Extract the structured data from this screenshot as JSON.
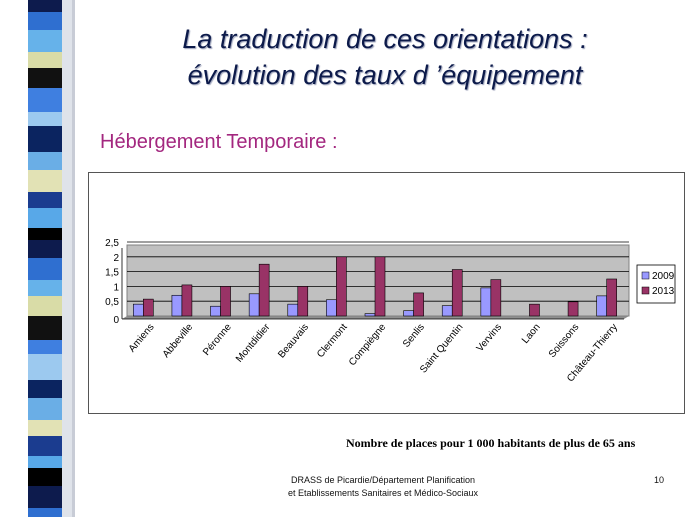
{
  "slide": {
    "title_line1": "La traduction de ces orientations :",
    "title_line2": "évolution des taux d ’équipement",
    "subtitle": "Hébergement Temporaire :",
    "caption": "Nombre de places pour 1 000 habitants de plus de 65 ans",
    "footer_line1": "DRASS de Picardie/Département Planification",
    "footer_line2": "et Etablissements Sanitaires et Médico-Sociaux",
    "page_number": "10"
  },
  "colors": {
    "series_2009": "#9999ff",
    "series_2013": "#993366",
    "plot_bg": "#c0c0c0"
  },
  "chart_data": {
    "type": "bar",
    "title": "",
    "xlabel": "",
    "ylabel": "",
    "categories": [
      "Amiens",
      "Abbeville",
      "Péronne",
      "Montdidier",
      "Beauvais",
      "Clermont",
      "Compiègne",
      "Senlis",
      "Saint Quentin",
      "Vervins",
      "Laon",
      "Soissons",
      "Château-Thierry"
    ],
    "series": [
      {
        "name": "2009",
        "values": [
          0.4,
          0.7,
          0.33,
          0.75,
          0.4,
          0.55,
          0.08,
          0.18,
          0.35,
          0.95,
          0,
          0,
          0.68
        ]
      },
      {
        "name": "2013",
        "values": [
          0.57,
          1.05,
          1.0,
          1.75,
          1.0,
          2.0,
          2.0,
          0.78,
          1.57,
          1.23,
          0.4,
          0.48,
          1.25
        ]
      }
    ],
    "yticks": [
      "0",
      "0,5",
      "1",
      "1,5",
      "2",
      "2,5"
    ],
    "ylim": [
      0,
      2.5
    ],
    "grid": true,
    "legend": "right"
  }
}
